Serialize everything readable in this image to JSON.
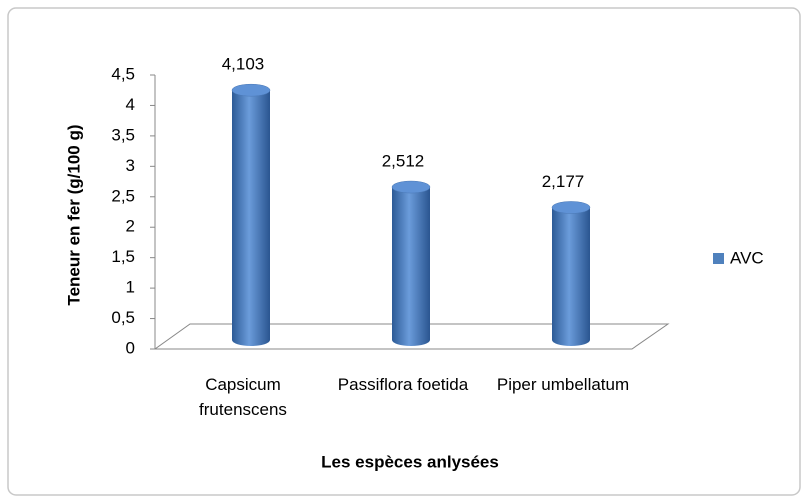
{
  "chart_data": {
    "type": "bar3d",
    "y_label": "Teneur en fer (g/100 g)",
    "x_label": "Les espèces anlysées",
    "categories": [
      "Capsicum frutenscens",
      "Passiflora foetida",
      "Piper umbellatum"
    ],
    "series": [
      {
        "name": "AVC",
        "color": "#4f81bd",
        "values": [
          4.103,
          2.512,
          2.177
        ],
        "value_labels": [
          "4,103",
          "2,512",
          "2,177"
        ]
      }
    ],
    "ylim": [
      0,
      4.5
    ],
    "yticks": [
      0,
      {
        "value": 0.5,
        "label": "0,5"
      },
      1,
      {
        "value": 1.5,
        "label": "1,5"
      },
      2,
      {
        "value": 2.5,
        "label": "2,5"
      },
      3,
      {
        "value": 3.5,
        "label": "3,5"
      },
      4,
      {
        "value": 4.5,
        "label": "4,5"
      }
    ],
    "legend": "right"
  }
}
